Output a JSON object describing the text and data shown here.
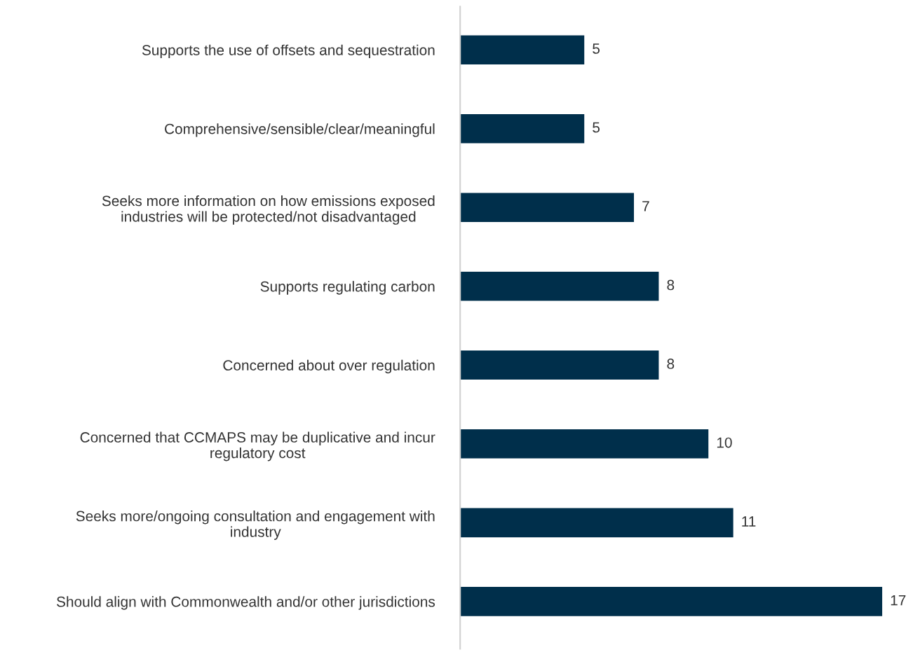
{
  "chart_data": {
    "type": "bar",
    "orientation": "horizontal",
    "tick_labels": "y",
    "data_labels": true,
    "grid": false,
    "legend": false,
    "categories": [
      "Supports the use of offsets and sequestration",
      "Comprehensive/sensible/clear/meaningful",
      "Seeks more information on how emissions exposed\nindustries will be protected/not disadvantaged",
      "Supports regulating carbon",
      "Concerned about over regulation",
      "Concerned that CCMAPS may be duplicative and incur\nregulatory cost",
      "Seeks more/ongoing consultation and engagement with\nindustry",
      "Should align with Commonwealth and/or other jurisdictions"
    ],
    "values": [
      5,
      5,
      7,
      8,
      8,
      10,
      11,
      17
    ],
    "color": "#002f4b"
  }
}
